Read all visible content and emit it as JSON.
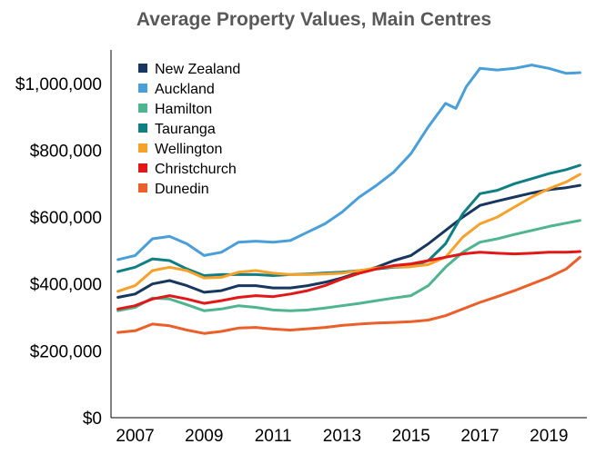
{
  "chart_data": {
    "type": "line",
    "title": "Average Property Values, Main Centres",
    "xlabel": "",
    "ylabel": "",
    "xlim": [
      2006.3,
      2020.1
    ],
    "ylim": [
      0,
      1100000
    ],
    "x_ticks": [
      2007,
      2009,
      2011,
      2013,
      2015,
      2017,
      2019
    ],
    "x_tick_labels": [
      "2007",
      "2009",
      "2011",
      "2013",
      "2015",
      "2017",
      "2019"
    ],
    "y_ticks": [
      0,
      200000,
      400000,
      600000,
      800000,
      1000000
    ],
    "y_tick_labels": [
      "$0",
      "$200,000",
      "$400,000",
      "$600,000",
      "$800,000",
      "$1,000,000"
    ],
    "grid": false,
    "legend_position": "top-left",
    "series": [
      {
        "name": "New Zealand",
        "color": "#17375e",
        "points": [
          [
            2006.5,
            360000
          ],
          [
            2007.0,
            370000
          ],
          [
            2007.5,
            400000
          ],
          [
            2008.0,
            410000
          ],
          [
            2008.5,
            395000
          ],
          [
            2009.0,
            375000
          ],
          [
            2009.5,
            380000
          ],
          [
            2010.0,
            395000
          ],
          [
            2010.5,
            395000
          ],
          [
            2011.0,
            388000
          ],
          [
            2011.5,
            388000
          ],
          [
            2012.0,
            395000
          ],
          [
            2012.5,
            405000
          ],
          [
            2013.0,
            418000
          ],
          [
            2013.5,
            435000
          ],
          [
            2014.0,
            450000
          ],
          [
            2014.5,
            470000
          ],
          [
            2015.0,
            485000
          ],
          [
            2015.5,
            520000
          ],
          [
            2016.0,
            560000
          ],
          [
            2016.5,
            600000
          ],
          [
            2017.0,
            635000
          ],
          [
            2017.5,
            648000
          ],
          [
            2018.0,
            660000
          ],
          [
            2018.5,
            672000
          ],
          [
            2019.0,
            682000
          ],
          [
            2019.5,
            688000
          ],
          [
            2019.9,
            695000
          ]
        ]
      },
      {
        "name": "Auckland",
        "color": "#4a9fd8",
        "points": [
          [
            2006.5,
            473000
          ],
          [
            2007.0,
            485000
          ],
          [
            2007.5,
            535000
          ],
          [
            2008.0,
            542000
          ],
          [
            2008.5,
            520000
          ],
          [
            2009.0,
            485000
          ],
          [
            2009.5,
            495000
          ],
          [
            2010.0,
            525000
          ],
          [
            2010.5,
            528000
          ],
          [
            2011.0,
            525000
          ],
          [
            2011.5,
            530000
          ],
          [
            2012.0,
            555000
          ],
          [
            2012.5,
            580000
          ],
          [
            2013.0,
            615000
          ],
          [
            2013.5,
            660000
          ],
          [
            2014.0,
            695000
          ],
          [
            2014.5,
            735000
          ],
          [
            2015.0,
            790000
          ],
          [
            2015.5,
            870000
          ],
          [
            2016.0,
            940000
          ],
          [
            2016.3,
            925000
          ],
          [
            2016.6,
            990000
          ],
          [
            2017.0,
            1045000
          ],
          [
            2017.5,
            1040000
          ],
          [
            2018.0,
            1045000
          ],
          [
            2018.5,
            1055000
          ],
          [
            2019.0,
            1045000
          ],
          [
            2019.5,
            1030000
          ],
          [
            2019.9,
            1032000
          ]
        ]
      },
      {
        "name": "Hamilton",
        "color": "#4fb58f",
        "points": [
          [
            2006.5,
            320000
          ],
          [
            2007.0,
            330000
          ],
          [
            2007.5,
            358000
          ],
          [
            2008.0,
            355000
          ],
          [
            2008.5,
            338000
          ],
          [
            2009.0,
            320000
          ],
          [
            2009.5,
            325000
          ],
          [
            2010.0,
            335000
          ],
          [
            2010.5,
            330000
          ],
          [
            2011.0,
            322000
          ],
          [
            2011.5,
            320000
          ],
          [
            2012.0,
            322000
          ],
          [
            2012.5,
            328000
          ],
          [
            2013.0,
            335000
          ],
          [
            2013.5,
            342000
          ],
          [
            2014.0,
            350000
          ],
          [
            2014.5,
            358000
          ],
          [
            2015.0,
            365000
          ],
          [
            2015.5,
            395000
          ],
          [
            2016.0,
            450000
          ],
          [
            2016.5,
            495000
          ],
          [
            2017.0,
            525000
          ],
          [
            2017.5,
            535000
          ],
          [
            2018.0,
            548000
          ],
          [
            2018.5,
            560000
          ],
          [
            2019.0,
            572000
          ],
          [
            2019.5,
            582000
          ],
          [
            2019.9,
            590000
          ]
        ]
      },
      {
        "name": "Tauranga",
        "color": "#0f7f83",
        "points": [
          [
            2006.5,
            437000
          ],
          [
            2007.0,
            450000
          ],
          [
            2007.5,
            475000
          ],
          [
            2008.0,
            470000
          ],
          [
            2008.5,
            445000
          ],
          [
            2009.0,
            425000
          ],
          [
            2009.5,
            428000
          ],
          [
            2010.0,
            428000
          ],
          [
            2010.5,
            428000
          ],
          [
            2011.0,
            425000
          ],
          [
            2011.5,
            428000
          ],
          [
            2012.0,
            430000
          ],
          [
            2012.5,
            433000
          ],
          [
            2013.0,
            435000
          ],
          [
            2013.5,
            440000
          ],
          [
            2014.0,
            445000
          ],
          [
            2014.5,
            450000
          ],
          [
            2015.0,
            452000
          ],
          [
            2015.5,
            470000
          ],
          [
            2016.0,
            520000
          ],
          [
            2016.5,
            610000
          ],
          [
            2017.0,
            670000
          ],
          [
            2017.5,
            680000
          ],
          [
            2018.0,
            700000
          ],
          [
            2018.5,
            715000
          ],
          [
            2019.0,
            730000
          ],
          [
            2019.5,
            742000
          ],
          [
            2019.9,
            755000
          ]
        ]
      },
      {
        "name": "Wellington",
        "color": "#f7a12a",
        "points": [
          [
            2006.5,
            378000
          ],
          [
            2007.0,
            395000
          ],
          [
            2007.5,
            440000
          ],
          [
            2008.0,
            450000
          ],
          [
            2008.5,
            440000
          ],
          [
            2009.0,
            418000
          ],
          [
            2009.5,
            420000
          ],
          [
            2010.0,
            435000
          ],
          [
            2010.5,
            440000
          ],
          [
            2011.0,
            432000
          ],
          [
            2011.5,
            428000
          ],
          [
            2012.0,
            428000
          ],
          [
            2012.5,
            430000
          ],
          [
            2013.0,
            432000
          ],
          [
            2013.5,
            440000
          ],
          [
            2014.0,
            448000
          ],
          [
            2014.5,
            452000
          ],
          [
            2015.0,
            452000
          ],
          [
            2015.5,
            458000
          ],
          [
            2016.0,
            480000
          ],
          [
            2016.5,
            540000
          ],
          [
            2017.0,
            580000
          ],
          [
            2017.5,
            600000
          ],
          [
            2018.0,
            630000
          ],
          [
            2018.5,
            660000
          ],
          [
            2019.0,
            685000
          ],
          [
            2019.5,
            705000
          ],
          [
            2019.9,
            728000
          ]
        ]
      },
      {
        "name": "Christchurch",
        "color": "#e21818",
        "points": [
          [
            2006.5,
            325000
          ],
          [
            2007.0,
            335000
          ],
          [
            2007.5,
            355000
          ],
          [
            2008.0,
            365000
          ],
          [
            2008.5,
            355000
          ],
          [
            2009.0,
            342000
          ],
          [
            2009.5,
            350000
          ],
          [
            2010.0,
            360000
          ],
          [
            2010.5,
            365000
          ],
          [
            2011.0,
            362000
          ],
          [
            2011.5,
            370000
          ],
          [
            2012.0,
            380000
          ],
          [
            2012.5,
            395000
          ],
          [
            2013.0,
            415000
          ],
          [
            2013.5,
            432000
          ],
          [
            2014.0,
            445000
          ],
          [
            2014.5,
            455000
          ],
          [
            2015.0,
            460000
          ],
          [
            2015.5,
            470000
          ],
          [
            2016.0,
            480000
          ],
          [
            2016.5,
            490000
          ],
          [
            2017.0,
            495000
          ],
          [
            2017.5,
            492000
          ],
          [
            2018.0,
            490000
          ],
          [
            2018.5,
            492000
          ],
          [
            2019.0,
            495000
          ],
          [
            2019.5,
            495000
          ],
          [
            2019.9,
            497000
          ]
        ]
      },
      {
        "name": "Dunedin",
        "color": "#ea5f2a",
        "points": [
          [
            2006.5,
            255000
          ],
          [
            2007.0,
            260000
          ],
          [
            2007.5,
            280000
          ],
          [
            2008.0,
            275000
          ],
          [
            2008.5,
            262000
          ],
          [
            2009.0,
            252000
          ],
          [
            2009.5,
            258000
          ],
          [
            2010.0,
            268000
          ],
          [
            2010.5,
            270000
          ],
          [
            2011.0,
            265000
          ],
          [
            2011.5,
            262000
          ],
          [
            2012.0,
            266000
          ],
          [
            2012.5,
            270000
          ],
          [
            2013.0,
            276000
          ],
          [
            2013.5,
            280000
          ],
          [
            2014.0,
            283000
          ],
          [
            2014.5,
            285000
          ],
          [
            2015.0,
            287000
          ],
          [
            2015.5,
            292000
          ],
          [
            2016.0,
            305000
          ],
          [
            2016.5,
            325000
          ],
          [
            2017.0,
            345000
          ],
          [
            2017.5,
            362000
          ],
          [
            2018.0,
            380000
          ],
          [
            2018.5,
            400000
          ],
          [
            2019.0,
            420000
          ],
          [
            2019.5,
            445000
          ],
          [
            2019.9,
            480000
          ]
        ]
      }
    ]
  }
}
